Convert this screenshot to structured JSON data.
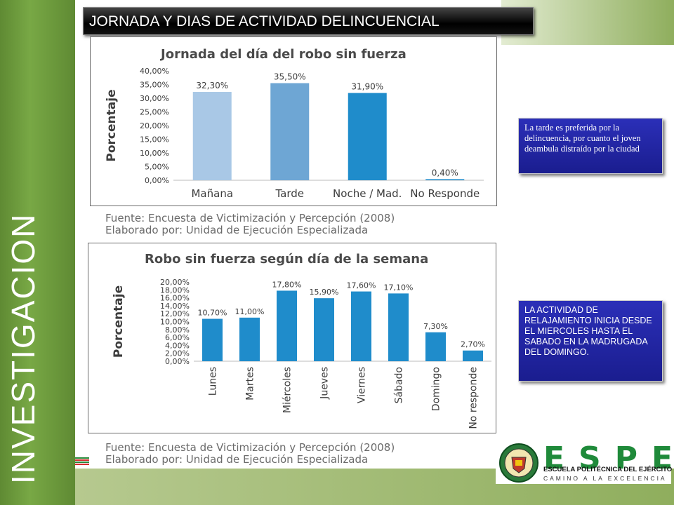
{
  "header": {
    "title": "JORNADA Y DIAS DE ACTIVIDAD DELINCUENCIAL"
  },
  "side_title": "INVESTIGACION",
  "colors": {
    "green": "#78a845",
    "bar_light": "#a9c8e6",
    "bar_mid": "#6ea6d4",
    "bar_dark": "#1f8ccb",
    "note_box": "#2b2fb8"
  },
  "chart_data": [
    {
      "type": "bar",
      "title": "Jornada del día del robo sin fuerza",
      "ylabel": "Porcentaje",
      "categories": [
        "Mañana",
        "Tarde",
        "Noche / Mad.",
        "No Responde"
      ],
      "values": [
        32.3,
        35.5,
        31.9,
        0.4
      ],
      "value_labels": [
        "32,30%",
        "35,50%",
        "31,90%",
        "0,40%"
      ],
      "ylim": [
        0,
        40
      ],
      "yticks": [
        "0,00%",
        "5,00%",
        "10,00%",
        "15,00%",
        "20,00%",
        "25,00%",
        "30,00%",
        "35,00%",
        "40,00%"
      ],
      "grid": false
    },
    {
      "type": "bar",
      "title": "Robo sin fuerza según día de la semana",
      "ylabel": "Porcentaje",
      "categories": [
        "Lunes",
        "Martes",
        "Miércoles",
        "Jueves",
        "Viernes",
        "Sábado",
        "Domingo",
        "No responde"
      ],
      "values": [
        10.7,
        11.0,
        17.8,
        15.9,
        17.6,
        17.1,
        7.3,
        2.7
      ],
      "value_labels": [
        "10,70%",
        "11,00%",
        "17,80%",
        "15,90%",
        "17,60%",
        "17,10%",
        "7,30%",
        "2,70%"
      ],
      "ylim": [
        0,
        20
      ],
      "yticks": [
        "0,00%",
        "2,00%",
        "4,00%",
        "6,00%",
        "8,00%",
        "10,00%",
        "12,00%",
        "14,00%",
        "16,00%",
        "18,00%",
        "20,00%"
      ],
      "grid": false
    }
  ],
  "sources": [
    {
      "line1": "Fuente: Encuesta de Victimización y Percepción (2008)",
      "line2": "Elaborado por: Unidad de Ejecución Especializada"
    },
    {
      "line1": "Fuente: Encuesta de Victimización y Percepción (2008)",
      "line2": "Elaborado por: Unidad de Ejecución Especializada"
    }
  ],
  "notes": [
    "La tarde es preferida por la delincuencia, por cuanto  el joven deambula distraído por la ciudad",
    "LA ACTIVIDAD DE RELAJAMIENTO INICIA DESDE EL MIERCOLES HASTA EL SABADO EN LA MADRUGADA DEL DOMINGO."
  ],
  "logo": {
    "letters": "ESPE",
    "line1": "ESCUELA POLITÉCNICA DEL EJÉRCITO",
    "line2": "CAMINO A LA EXCELENCIA"
  }
}
